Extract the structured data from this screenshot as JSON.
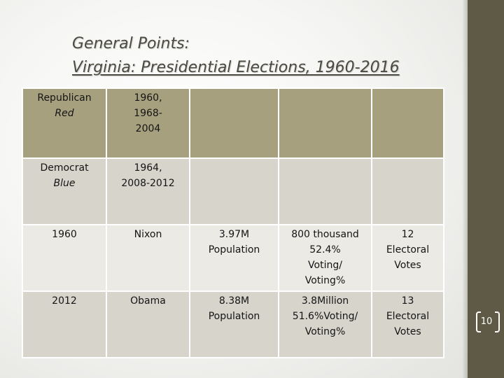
{
  "slide": {
    "title_line1": "General Points:",
    "title_line2": "Virginia: Presidential Elections, 1960-2016",
    "page_number": "10"
  },
  "table": {
    "rows": [
      {
        "cells": [
          {
            "lines": [
              "Republican"
            ],
            "italic": "Red"
          },
          {
            "lines": [
              "1960,",
              "1968-",
              "2004"
            ]
          },
          {
            "lines": []
          },
          {
            "lines": []
          },
          {
            "lines": []
          }
        ]
      },
      {
        "cells": [
          {
            "lines": [
              "Democrat"
            ],
            "italic": "Blue"
          },
          {
            "lines": [
              "1964,",
              "2008-2012"
            ]
          },
          {
            "lines": []
          },
          {
            "lines": []
          },
          {
            "lines": []
          }
        ]
      },
      {
        "cells": [
          {
            "lines": [
              "1960"
            ]
          },
          {
            "lines": [
              "Nixon"
            ]
          },
          {
            "lines": [
              "3.97M",
              "Population"
            ]
          },
          {
            "lines": [
              "800 thousand",
              "52.4%",
              "Voting/",
              "Voting%"
            ]
          },
          {
            "lines": [
              "12",
              "Electoral",
              "Votes"
            ]
          }
        ]
      },
      {
        "cells": [
          {
            "lines": [
              "2012"
            ]
          },
          {
            "lines": [
              "Obama"
            ]
          },
          {
            "lines": [
              "8.38M",
              "Population"
            ]
          },
          {
            "lines": [
              "3.8Million",
              "51.6%Voting/",
              "Voting%"
            ]
          },
          {
            "lines": [
              "13",
              "Electoral",
              "Votes"
            ]
          }
        ]
      }
    ]
  },
  "colors": {
    "header_row": "#a6a07e",
    "row_light": "#d7d5cb",
    "row_lighter": "#ebeae5",
    "right_band": "#5f5a46",
    "title_text": "#4c4a40"
  }
}
